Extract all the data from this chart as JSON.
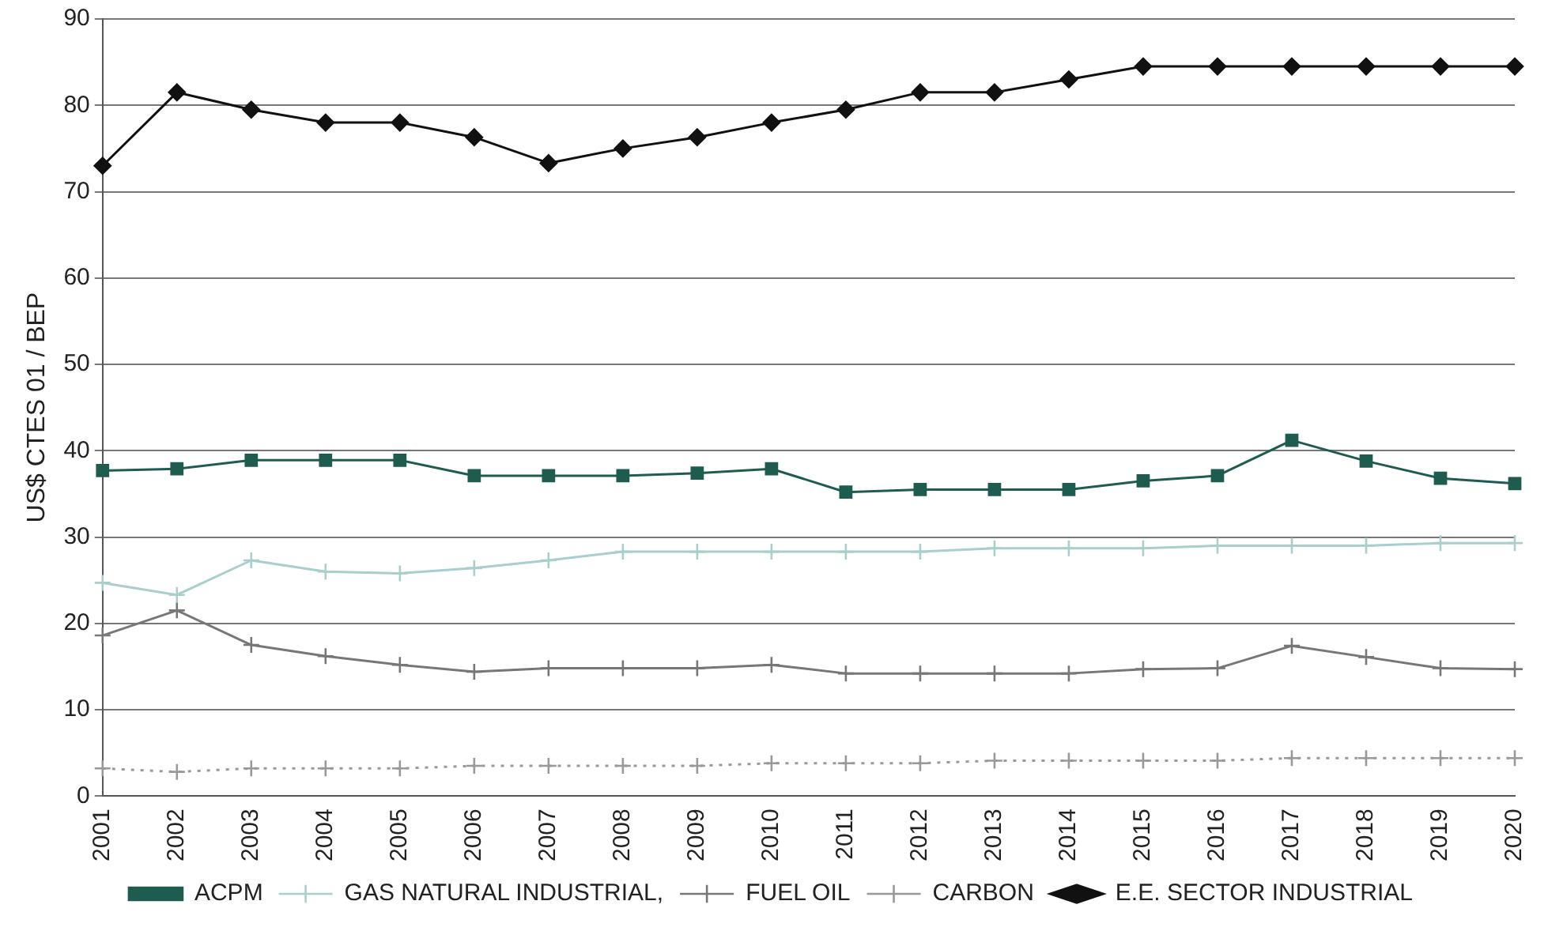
{
  "chart_data": {
    "type": "line",
    "ylabel": "US$ CTES 01 / BEP",
    "categories": [
      "2001",
      "2002",
      "2003",
      "2004",
      "2005",
      "2006",
      "2007",
      "2008",
      "2009",
      "2010",
      "2011",
      "2012",
      "2013",
      "2014",
      "2015",
      "2016",
      "2017",
      "2018",
      "2019",
      "2020"
    ],
    "series": [
      {
        "name": "ACPM",
        "color": "#1f5c50",
        "marker": "square",
        "line_style": "solid",
        "values": [
          37.7,
          37.9,
          38.9,
          38.9,
          38.9,
          37.1,
          37.1,
          37.1,
          37.4,
          37.9,
          35.2,
          35.5,
          35.5,
          35.5,
          36.5,
          37.1,
          41.2,
          38.8,
          36.8,
          36.2
        ]
      },
      {
        "name": "GAS NATURAL INDUSTRIAL,",
        "color": "#a8cfcc",
        "marker": "cross",
        "line_style": "solid",
        "values": [
          24.7,
          23.3,
          27.3,
          26,
          25.8,
          26.4,
          27.3,
          28.3,
          28.3,
          28.3,
          28.3,
          28.3,
          28.7,
          28.7,
          28.7,
          29,
          29,
          29,
          29.3,
          29.3
        ]
      },
      {
        "name": "FUEL OIL",
        "color": "#777777",
        "marker": "cross",
        "line_style": "solid",
        "values": [
          18.6,
          21.5,
          17.5,
          16.2,
          15.2,
          14.4,
          14.8,
          14.8,
          14.8,
          15.2,
          14.2,
          14.2,
          14.2,
          14.2,
          14.7,
          14.8,
          17.4,
          16.1,
          14.8,
          14.7
        ]
      },
      {
        "name": "CARBON",
        "color": "#999999",
        "marker": "cross",
        "line_style": "dotted",
        "values": [
          3.2,
          2.8,
          3.2,
          3.2,
          3.2,
          3.5,
          3.5,
          3.5,
          3.5,
          3.8,
          3.8,
          3.8,
          4.1,
          4.1,
          4.1,
          4.1,
          4.4,
          4.4,
          4.4,
          4.4
        ]
      },
      {
        "name": "E.E. SECTOR INDUSTRIAL",
        "color": "#111111",
        "marker": "diamond",
        "line_style": "solid",
        "values": [
          73,
          81.5,
          79.5,
          78,
          78,
          76.3,
          73.3,
          75,
          76.3,
          78,
          79.5,
          81.5,
          81.5,
          83,
          84.5,
          84.5,
          84.5,
          84.5,
          84.5,
          84.5
        ]
      }
    ],
    "ylim": [
      0,
      90
    ],
    "yticks": [
      0,
      10,
      20,
      30,
      40,
      50,
      60,
      70,
      80,
      90
    ],
    "grid": "y",
    "legend": "bottom"
  }
}
